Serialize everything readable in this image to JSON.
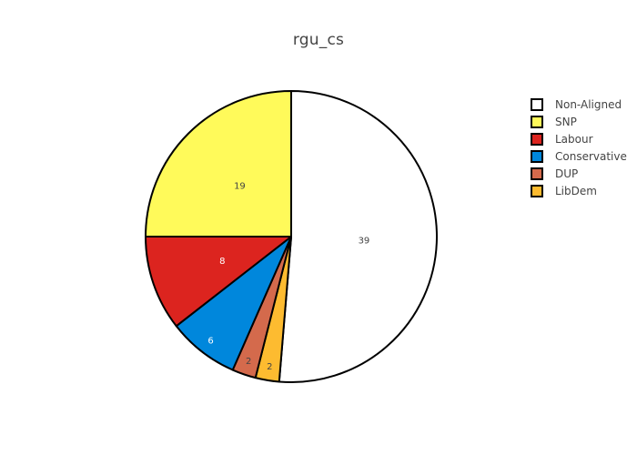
{
  "chart_data": {
    "type": "pie",
    "title": "rgu_cs",
    "labels": [
      "Non-Aligned",
      "SNP",
      "Labour",
      "Conservative",
      "DUP",
      "LibDem"
    ],
    "values": [
      39,
      19,
      8,
      6,
      2,
      2
    ],
    "colors": [
      "#ffffff",
      "#fffa5a",
      "#dc241f",
      "#0087dc",
      "#d46a4c",
      "#fdbb30"
    ],
    "text_colors": [
      "#444444",
      "#444444",
      "#ffffff",
      "#ffffff",
      "#444444",
      "#444444"
    ],
    "slice_order": [
      "Non-Aligned",
      "LibDem",
      "DUP",
      "Conservative",
      "Labour",
      "SNP"
    ],
    "direction": "clockwise",
    "start": "top",
    "legend_position": "top-right",
    "line_color": "#000000"
  }
}
